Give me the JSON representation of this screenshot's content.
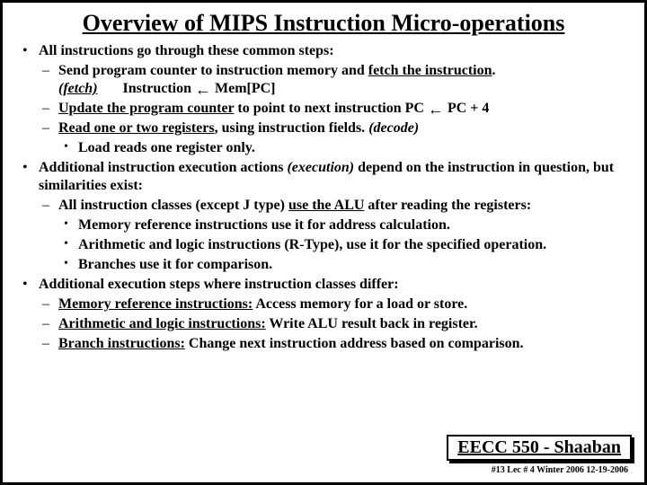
{
  "title": "Overview of MIPS Instruction Micro-operations",
  "bullets": {
    "b1": "All instructions go through these common steps:",
    "b1_1a": "Send program counter to instruction memory and ",
    "b1_1b": "fetch the instruction",
    "b1_1c": ".",
    "b1_1_fetch": "(fetch)",
    "b1_1_instr": "Instruction",
    "b1_1_mem": "Mem[PC]",
    "b1_2a": "Update the program counter",
    "b1_2b": " to point to next instruction   PC ",
    "b1_2c": "  PC + 4",
    "b1_3a": "Read one or two registers",
    "b1_3b": ", using instruction fields. ",
    "b1_3c": "(decode)",
    "b1_3_1": "Load reads one register only.",
    "b2a": "Additional instruction execution actions ",
    "b2b": "(execution)",
    "b2c": " depend on the instruction in question, but similarities exist:",
    "b2_1a": "All instruction classes  (except J type) ",
    "b2_1b": "use the ALU",
    "b2_1c": " after reading the registers:",
    "b2_1_1": "Memory reference instructions use it for address calculation.",
    "b2_1_2": "Arithmetic and logic instructions (R-Type),  use it for the specified operation.",
    "b2_1_3": "Branches use it for comparison.",
    "b3": "Additional execution steps where instruction classes differ:",
    "b3_1a": "Memory reference instructions:",
    "b3_1b": "  Access memory for a load or store.",
    "b3_2a": "Arithmetic and logic instructions:",
    "b3_2b": "  Write ALU result back in register.",
    "b3_3a": "Branch instructions:",
    "b3_3b": "  Change next instruction address based on comparison."
  },
  "footer": {
    "course": "EECC 550 - Shaaban",
    "small": "#13   Lec # 4   Winter 2006   12-19-2006"
  }
}
